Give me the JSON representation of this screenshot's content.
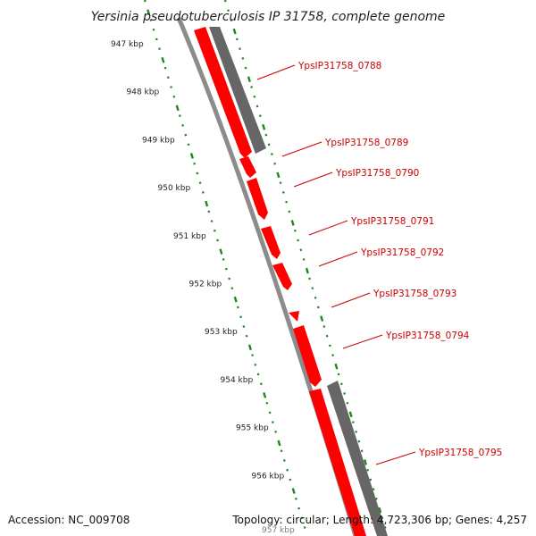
{
  "title": "Yersinia pseudotuberculosis IP 31758, complete genome",
  "colors": {
    "tick": "#1a8a1a",
    "backbone": "#8c8c8c",
    "gene_forward": "#ff0000",
    "gene_reverse": "#666666",
    "label": "#cc0000"
  },
  "ruler": {
    "labels": [
      "947 kbp",
      "948 kbp",
      "949 kbp",
      "950 kbp",
      "951 kbp",
      "952 kbp",
      "953 kbp",
      "954 kbp",
      "955 kbp",
      "956 kbp"
    ],
    "partial_label": "957 kbp"
  },
  "genes": [
    {
      "label": "YpsIP31758_0788"
    },
    {
      "label": "YpsIP31758_0789"
    },
    {
      "label": "YpsIP31758_0790"
    },
    {
      "label": "YpsIP31758_0791"
    },
    {
      "label": "YpsIP31758_0792"
    },
    {
      "label": "YpsIP31758_0793"
    },
    {
      "label": "YpsIP31758_0794"
    },
    {
      "label": "YpsIP31758_0795"
    }
  ],
  "footer": {
    "accession": "Accession: NC_009708",
    "summary": "Topology: circular; Length: 4,723,306 bp; Genes: 4,257"
  }
}
